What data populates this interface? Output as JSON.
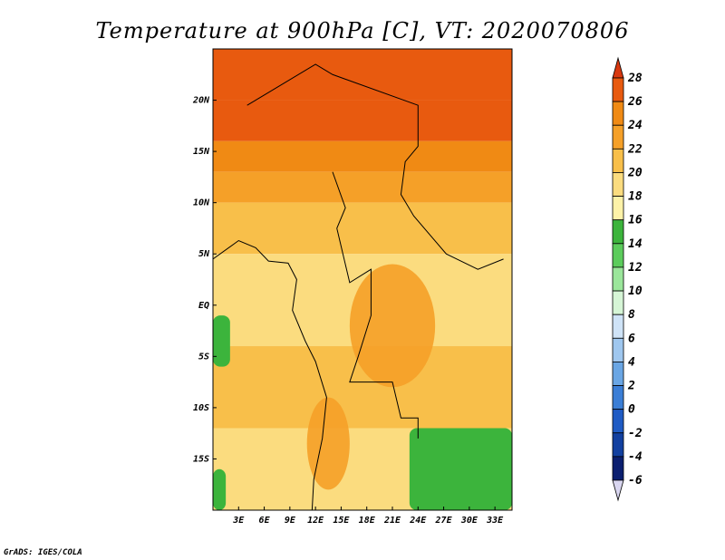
{
  "chart_data": {
    "type": "heatmap",
    "title": "Temperature at 900hPa [C], VT: 2020070806",
    "variable": "Temperature at 900hPa",
    "units": "C",
    "valid_time": "2020070806",
    "lon_range": [
      0,
      35
    ],
    "lat_range": [
      -20,
      25
    ],
    "x_ticks": [
      {
        "value": 3,
        "label": "3E"
      },
      {
        "value": 6,
        "label": "6E"
      },
      {
        "value": 9,
        "label": "9E"
      },
      {
        "value": 12,
        "label": "12E"
      },
      {
        "value": 15,
        "label": "15E"
      },
      {
        "value": 18,
        "label": "18E"
      },
      {
        "value": 21,
        "label": "21E"
      },
      {
        "value": 24,
        "label": "24E"
      },
      {
        "value": 27,
        "label": "27E"
      },
      {
        "value": 30,
        "label": "30E"
      },
      {
        "value": 33,
        "label": "33E"
      }
    ],
    "y_ticks": [
      {
        "value": 20,
        "label": "20N"
      },
      {
        "value": 15,
        "label": "15N"
      },
      {
        "value": 10,
        "label": "10N"
      },
      {
        "value": 5,
        "label": "5N"
      },
      {
        "value": 0,
        "label": "EQ"
      },
      {
        "value": -5,
        "label": "5S"
      },
      {
        "value": -10,
        "label": "10S"
      },
      {
        "value": -15,
        "label": "15S"
      }
    ],
    "colorbar": {
      "levels": [
        28,
        26,
        24,
        22,
        20,
        18,
        16,
        14,
        12,
        10,
        8,
        6,
        4,
        2,
        0,
        -2,
        -4,
        -6
      ],
      "colors": [
        "#d8380f",
        "#e85a0f",
        "#f08a14",
        "#f5a028",
        "#f8bf4a",
        "#fbdc7f",
        "#fdf2a8",
        "#3cb43c",
        "#5ccc5c",
        "#9be69b",
        "#d6f5d6",
        "#cfe3f7",
        "#9fc7ef",
        "#6aa6e4",
        "#3b7ed6",
        "#1f5bc4",
        "#1240a0",
        "#0b1f70",
        "#d9d6f0"
      ]
    },
    "field": [
      {
        "lat_top": 25,
        "lat_bot": 20,
        "value": 27
      },
      {
        "lat_top": 20,
        "lat_bot": 16,
        "value": 26
      },
      {
        "lat_top": 16,
        "lat_bot": 13,
        "value": 25
      },
      {
        "lat_top": 13,
        "lat_bot": 10,
        "value": 23
      },
      {
        "lat_top": 10,
        "lat_bot": 5,
        "value": 21
      },
      {
        "lat_top": 5,
        "lat_bot": -4,
        "value": 19
      },
      {
        "lat_top": -4,
        "lat_bot": -12,
        "value": 21
      },
      {
        "lat_top": -12,
        "lat_bot": -20,
        "value": 19
      }
    ],
    "cool_patches": [
      {
        "name": "southeast",
        "lon": [
          23,
          35
        ],
        "lat": [
          -12,
          -20
        ],
        "value": 15
      },
      {
        "name": "atlantic-south",
        "lon": [
          0,
          2
        ],
        "lat": [
          -1,
          -6
        ],
        "value": 15
      },
      {
        "name": "atlantic-southwest",
        "lon": [
          0,
          1.5
        ],
        "lat": [
          -16,
          -20
        ],
        "value": 15
      }
    ],
    "warm_patches": [
      {
        "name": "congo-basin",
        "lon": [
          16,
          26
        ],
        "lat": [
          4,
          -8
        ],
        "value": 22
      },
      {
        "name": "west-angola",
        "lon": [
          11,
          16
        ],
        "lat": [
          -9,
          -18
        ],
        "value": 22
      }
    ]
  },
  "credit": "GrADS: IGES/COLA"
}
